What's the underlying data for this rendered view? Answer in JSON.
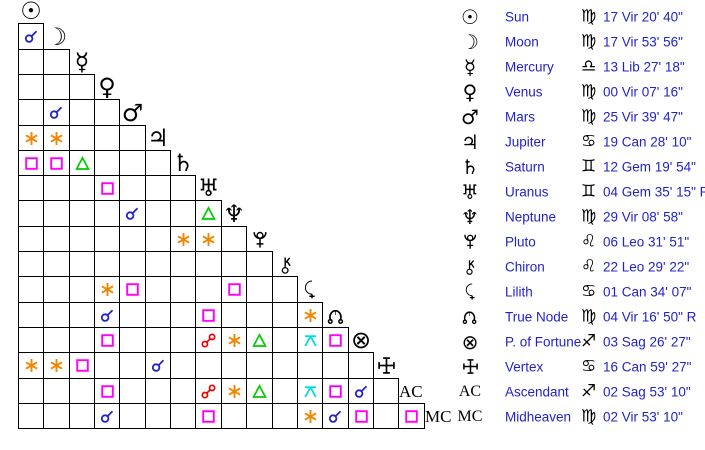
{
  "colors": {
    "background": "#ffffff",
    "grid_line": "#000000",
    "glyph_black": "#000000",
    "text_blue": "#2222cc"
  },
  "aspect_colors": {
    "conjunction": "#2222cc",
    "sextile": "#f28500",
    "square": "#ff00ff",
    "trine": "#00cc00",
    "opposition": "#ee0000",
    "quincunx": "#00dddd"
  },
  "glyph_chars": {
    "sun": "☉",
    "moon": "☽",
    "mercury": "☿",
    "venus": "♀",
    "mars": "♂",
    "jupiter": "♃",
    "saturn": "♄",
    "uranus": "♅",
    "neptune": "♆",
    "pfortune": "⊗",
    "ac": "AC",
    "mc": "MC",
    "vir": "♍",
    "lib": "♎",
    "can": "♋",
    "gem": "♊",
    "leo": "♌",
    "sag": "♐"
  },
  "grid": {
    "diagonal_order": [
      "sun",
      "moon",
      "mercury",
      "venus",
      "mars",
      "jupiter",
      "saturn",
      "uranus",
      "neptune",
      "pluto",
      "chiron",
      "lilith",
      "truenode",
      "pfortune",
      "vertex",
      "ac",
      "mc"
    ],
    "aspects": [
      {
        "row": 1,
        "col": 0,
        "type": "conjunction"
      },
      {
        "row": 4,
        "col": 1,
        "type": "conjunction"
      },
      {
        "row": 5,
        "col": 0,
        "type": "sextile"
      },
      {
        "row": 5,
        "col": 1,
        "type": "sextile"
      },
      {
        "row": 6,
        "col": 0,
        "type": "square"
      },
      {
        "row": 6,
        "col": 1,
        "type": "square"
      },
      {
        "row": 6,
        "col": 2,
        "type": "trine"
      },
      {
        "row": 7,
        "col": 3,
        "type": "square"
      },
      {
        "row": 8,
        "col": 4,
        "type": "conjunction"
      },
      {
        "row": 8,
        "col": 7,
        "type": "trine"
      },
      {
        "row": 9,
        "col": 6,
        "type": "sextile"
      },
      {
        "row": 9,
        "col": 7,
        "type": "sextile"
      },
      {
        "row": 11,
        "col": 3,
        "type": "sextile"
      },
      {
        "row": 11,
        "col": 4,
        "type": "square"
      },
      {
        "row": 11,
        "col": 8,
        "type": "square"
      },
      {
        "row": 12,
        "col": 3,
        "type": "conjunction"
      },
      {
        "row": 12,
        "col": 7,
        "type": "square"
      },
      {
        "row": 12,
        "col": 11,
        "type": "sextile"
      },
      {
        "row": 13,
        "col": 3,
        "type": "square"
      },
      {
        "row": 13,
        "col": 7,
        "type": "opposition"
      },
      {
        "row": 13,
        "col": 8,
        "type": "sextile"
      },
      {
        "row": 13,
        "col": 9,
        "type": "trine"
      },
      {
        "row": 13,
        "col": 11,
        "type": "quincunx"
      },
      {
        "row": 13,
        "col": 12,
        "type": "square"
      },
      {
        "row": 14,
        "col": 0,
        "type": "sextile"
      },
      {
        "row": 14,
        "col": 1,
        "type": "sextile"
      },
      {
        "row": 14,
        "col": 2,
        "type": "square"
      },
      {
        "row": 14,
        "col": 5,
        "type": "conjunction"
      },
      {
        "row": 15,
        "col": 3,
        "type": "square"
      },
      {
        "row": 15,
        "col": 7,
        "type": "opposition"
      },
      {
        "row": 15,
        "col": 8,
        "type": "sextile"
      },
      {
        "row": 15,
        "col": 9,
        "type": "trine"
      },
      {
        "row": 15,
        "col": 11,
        "type": "quincunx"
      },
      {
        "row": 15,
        "col": 12,
        "type": "square"
      },
      {
        "row": 15,
        "col": 13,
        "type": "conjunction"
      },
      {
        "row": 16,
        "col": 3,
        "type": "conjunction"
      },
      {
        "row": 16,
        "col": 7,
        "type": "square"
      },
      {
        "row": 16,
        "col": 11,
        "type": "sextile"
      },
      {
        "row": 16,
        "col": 12,
        "type": "conjunction"
      },
      {
        "row": 16,
        "col": 13,
        "type": "square"
      },
      {
        "row": 16,
        "col": 15,
        "type": "square"
      }
    ]
  },
  "table": {
    "rows": [
      {
        "key": "sun",
        "name": "Sun",
        "sign": "vir",
        "position": "17 Vir 20' 40\""
      },
      {
        "key": "moon",
        "name": "Moon",
        "sign": "vir",
        "position": "17 Vir 53' 56\""
      },
      {
        "key": "mercury",
        "name": "Mercury",
        "sign": "lib",
        "position": "13 Lib 27' 18\""
      },
      {
        "key": "venus",
        "name": "Venus",
        "sign": "vir",
        "position": "00 Vir 07' 16\""
      },
      {
        "key": "mars",
        "name": "Mars",
        "sign": "vir",
        "position": "25 Vir 39' 47\""
      },
      {
        "key": "jupiter",
        "name": "Jupiter",
        "sign": "can",
        "position": "19 Can 28' 10\""
      },
      {
        "key": "saturn",
        "name": "Saturn",
        "sign": "gem",
        "position": "12 Gem 19' 54\""
      },
      {
        "key": "uranus",
        "name": "Uranus",
        "sign": "gem",
        "position": "04 Gem 35' 15\" R"
      },
      {
        "key": "neptune",
        "name": "Neptune",
        "sign": "vir",
        "position": "29 Vir 08' 58\""
      },
      {
        "key": "pluto",
        "name": "Pluto",
        "sign": "leo",
        "position": "06 Leo 31' 51\""
      },
      {
        "key": "chiron",
        "name": "Chiron",
        "sign": "leo",
        "position": "22 Leo 29' 22\""
      },
      {
        "key": "lilith",
        "name": "Lilith",
        "sign": "can",
        "position": "01 Can 34' 07\""
      },
      {
        "key": "truenode",
        "name": "True Node",
        "sign": "vir",
        "position": "04 Vir 16' 50\" R"
      },
      {
        "key": "pfortune",
        "name": "P. of Fortune",
        "sign": "sag",
        "position": "03 Sag 26' 27\""
      },
      {
        "key": "vertex",
        "name": "Vertex",
        "sign": "can",
        "position": "16 Can 59' 27\""
      },
      {
        "key": "ac",
        "name": "Ascendant",
        "sign": "sag",
        "position": "02 Sag 53' 10\""
      },
      {
        "key": "mc",
        "name": "Midheaven",
        "sign": "vir",
        "position": "02 Vir 53' 10\""
      }
    ]
  }
}
